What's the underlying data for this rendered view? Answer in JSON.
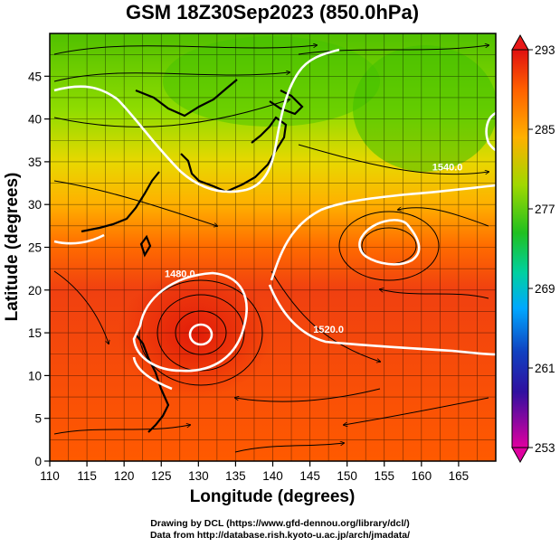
{
  "title": "GSM 18Z30Sep2023 (850.0hPa)",
  "x_axis": {
    "label": "Longitude (degrees)",
    "range": [
      110,
      170
    ],
    "ticks": [
      110,
      115,
      120,
      125,
      130,
      135,
      140,
      145,
      150,
      155,
      160,
      165
    ]
  },
  "y_axis": {
    "label": "Latitude  (degrees)",
    "range": [
      0,
      50
    ],
    "ticks": [
      0,
      5,
      10,
      15,
      20,
      25,
      30,
      35,
      40,
      45
    ]
  },
  "colorbar": {
    "ticks": [
      293,
      285,
      277,
      269,
      261,
      253
    ],
    "range": [
      253,
      293
    ],
    "colors": [
      "#d00090",
      "#1020a0",
      "#00b8ff",
      "#00c060",
      "#78d800",
      "#ffb000",
      "#ff5a00",
      "#dd1a0a"
    ]
  },
  "contour_labels": [
    {
      "text": "1480.0",
      "lon": 127.5,
      "lat": 21.5
    },
    {
      "text": "1520.0",
      "lon": 147.5,
      "lat": 15.0
    },
    {
      "text": "1540.0",
      "lon": 163.5,
      "lat": 34.0
    }
  ],
  "credits": {
    "line1": "Drawing by DCL (https://www.gfd-dennou.org/library/dcl/)",
    "line2": "Data from http://database.rish.kyoto-u.ac.jp/arch/jmadata/"
  },
  "chart_data": {
    "type": "heatmap",
    "title": "GSM 18Z30Sep2023 (850.0hPa)",
    "xlabel": "Longitude (degrees)",
    "ylabel": "Latitude  (degrees)",
    "xlim": [
      110,
      170
    ],
    "ylim": [
      0,
      50
    ],
    "colorbar_range": [
      253,
      293
    ],
    "grid": true
  }
}
